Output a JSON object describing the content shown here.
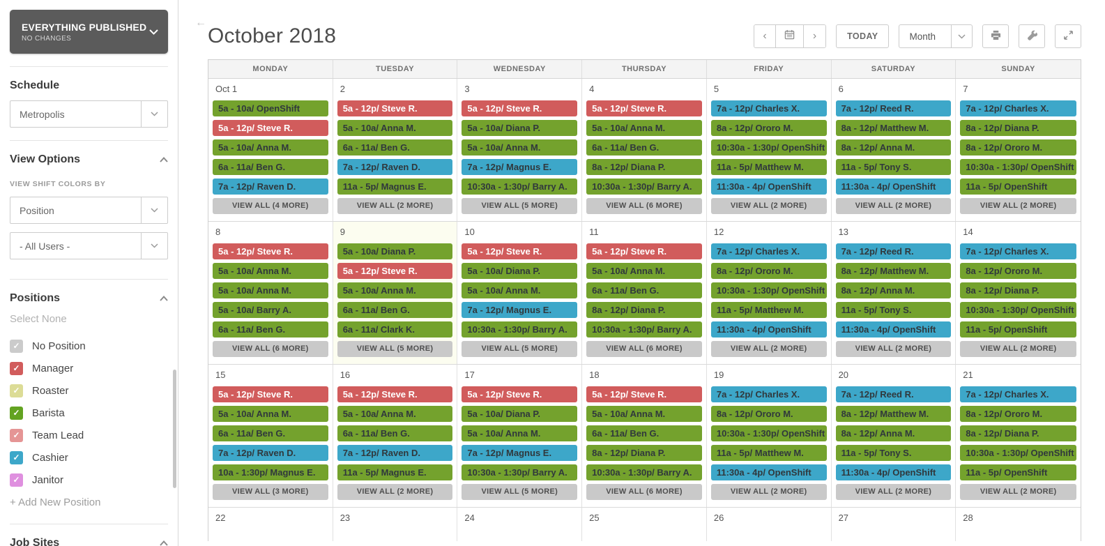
{
  "sidebar": {
    "publish_status": {
      "title": "EVERYTHING PUBLISHED",
      "subtitle": "NO CHANGES"
    },
    "schedule": {
      "heading": "Schedule",
      "selected": "Metropolis"
    },
    "view_options": {
      "heading": "View Options",
      "colors_by_label": "VIEW SHIFT COLORS BY",
      "colors_by_value": "Position",
      "users_value": "- All Users -"
    },
    "positions": {
      "heading": "Positions",
      "select_none": "Select None",
      "add_new": "+ Add New Position",
      "items": [
        {
          "label": "No Position",
          "color": "#cbcbcb",
          "checked": true
        },
        {
          "label": "Manager",
          "color": "#d15c5c",
          "checked": true
        },
        {
          "label": "Roaster",
          "color": "#dcdc96",
          "checked": true
        },
        {
          "label": "Barista",
          "color": "#63a321",
          "checked": true
        },
        {
          "label": "Team Lead",
          "color": "#e59595",
          "checked": true
        },
        {
          "label": "Cashier",
          "color": "#3da7c9",
          "checked": true
        },
        {
          "label": "Janitor",
          "color": "#df90df",
          "checked": true
        }
      ]
    },
    "job_sites": {
      "heading": "Job Sites"
    }
  },
  "toolbar": {
    "title": "October 2018",
    "today_label": "TODAY",
    "view_mode": "Month"
  },
  "calendar": {
    "weekdays": [
      "MONDAY",
      "TUESDAY",
      "WEDNESDAY",
      "THURSDAY",
      "FRIDAY",
      "SATURDAY",
      "SUNDAY"
    ],
    "shift_colors": {
      "green": "#74a22d",
      "red": "#d15c5c",
      "blue": "#3da7c9"
    },
    "weeks": [
      {
        "days": [
          {
            "date": "Oct 1",
            "shifts": [
              {
                "t": "5a - 10a/ OpenShift",
                "c": "green"
              },
              {
                "t": "5a - 12p/ Steve R.",
                "c": "red"
              },
              {
                "t": "5a - 10a/ Anna M.",
                "c": "green"
              },
              {
                "t": "6a - 11a/ Ben G.",
                "c": "green"
              },
              {
                "t": "7a - 12p/ Raven D.",
                "c": "blue"
              }
            ],
            "more": "VIEW ALL (4 MORE)"
          },
          {
            "date": "2",
            "shifts": [
              {
                "t": "5a - 12p/ Steve R.",
                "c": "red"
              },
              {
                "t": "5a - 10a/ Anna M.",
                "c": "green"
              },
              {
                "t": "6a - 11a/ Ben G.",
                "c": "green"
              },
              {
                "t": "7a - 12p/ Raven D.",
                "c": "blue"
              },
              {
                "t": "11a - 5p/ Magnus E.",
                "c": "green"
              }
            ],
            "more": "VIEW ALL (2 MORE)"
          },
          {
            "date": "3",
            "shifts": [
              {
                "t": "5a - 12p/ Steve R.",
                "c": "red"
              },
              {
                "t": "5a - 10a/ Diana P.",
                "c": "green"
              },
              {
                "t": "5a - 10a/ Anna M.",
                "c": "green"
              },
              {
                "t": "7a - 12p/ Magnus E.",
                "c": "blue"
              },
              {
                "t": "10:30a - 1:30p/ Barry A.",
                "c": "green"
              }
            ],
            "more": "VIEW ALL (5 MORE)"
          },
          {
            "date": "4",
            "shifts": [
              {
                "t": "5a - 12p/ Steve R.",
                "c": "red"
              },
              {
                "t": "5a - 10a/ Anna M.",
                "c": "green"
              },
              {
                "t": "6a - 11a/ Ben G.",
                "c": "green"
              },
              {
                "t": "8a - 12p/ Diana P.",
                "c": "green"
              },
              {
                "t": "10:30a - 1:30p/ Barry A.",
                "c": "green"
              }
            ],
            "more": "VIEW ALL (6 MORE)"
          },
          {
            "date": "5",
            "shifts": [
              {
                "t": "7a - 12p/ Charles X.",
                "c": "blue"
              },
              {
                "t": "8a - 12p/ Ororo M.",
                "c": "green"
              },
              {
                "t": "10:30a - 1:30p/ OpenShift",
                "c": "green"
              },
              {
                "t": "11a - 5p/ Matthew M.",
                "c": "green"
              },
              {
                "t": "11:30a - 4p/ OpenShift",
                "c": "blue"
              }
            ],
            "more": "VIEW ALL (2 MORE)"
          },
          {
            "date": "6",
            "shifts": [
              {
                "t": "7a - 12p/ Reed R.",
                "c": "blue"
              },
              {
                "t": "8a - 12p/ Matthew M.",
                "c": "green"
              },
              {
                "t": "8a - 12p/ Anna M.",
                "c": "green"
              },
              {
                "t": "11a - 5p/ Tony S.",
                "c": "green"
              },
              {
                "t": "11:30a - 4p/ OpenShift",
                "c": "blue"
              }
            ],
            "more": "VIEW ALL (2 MORE)"
          },
          {
            "date": "7",
            "shifts": [
              {
                "t": "7a - 12p/ Charles X.",
                "c": "blue"
              },
              {
                "t": "8a - 12p/ Diana P.",
                "c": "green"
              },
              {
                "t": "8a - 12p/ Ororo M.",
                "c": "green"
              },
              {
                "t": "10:30a - 1:30p/ OpenShift",
                "c": "green"
              },
              {
                "t": "11a - 5p/ OpenShift",
                "c": "green"
              }
            ],
            "more": "VIEW ALL (2 MORE)"
          }
        ]
      },
      {
        "days": [
          {
            "date": "8",
            "shifts": [
              {
                "t": "5a - 12p/ Steve R.",
                "c": "red"
              },
              {
                "t": "5a - 10a/ Anna M.",
                "c": "green"
              },
              {
                "t": "5a - 10a/ Anna M.",
                "c": "green"
              },
              {
                "t": "5a - 10a/ Barry A.",
                "c": "green"
              },
              {
                "t": "6a - 11a/ Ben G.",
                "c": "green"
              }
            ],
            "more": "VIEW ALL (6 MORE)"
          },
          {
            "date": "9",
            "today": true,
            "shifts": [
              {
                "t": "5a - 10a/ Diana P.",
                "c": "green"
              },
              {
                "t": "5a - 12p/ Steve R.",
                "c": "red"
              },
              {
                "t": "5a - 10a/ Anna M.",
                "c": "green"
              },
              {
                "t": "6a - 11a/ Ben G.",
                "c": "green"
              },
              {
                "t": "6a - 11a/ Clark K.",
                "c": "green"
              }
            ],
            "more": "VIEW ALL (5 MORE)"
          },
          {
            "date": "10",
            "shifts": [
              {
                "t": "5a - 12p/ Steve R.",
                "c": "red"
              },
              {
                "t": "5a - 10a/ Diana P.",
                "c": "green"
              },
              {
                "t": "5a - 10a/ Anna M.",
                "c": "green"
              },
              {
                "t": "7a - 12p/ Magnus E.",
                "c": "blue"
              },
              {
                "t": "10:30a - 1:30p/ Barry A.",
                "c": "green"
              }
            ],
            "more": "VIEW ALL (5 MORE)"
          },
          {
            "date": "11",
            "shifts": [
              {
                "t": "5a - 12p/ Steve R.",
                "c": "red"
              },
              {
                "t": "5a - 10a/ Anna M.",
                "c": "green"
              },
              {
                "t": "6a - 11a/ Ben G.",
                "c": "green"
              },
              {
                "t": "8a - 12p/ Diana P.",
                "c": "green"
              },
              {
                "t": "10:30a - 1:30p/ Barry A.",
                "c": "green"
              }
            ],
            "more": "VIEW ALL (6 MORE)"
          },
          {
            "date": "12",
            "shifts": [
              {
                "t": "7a - 12p/ Charles X.",
                "c": "blue"
              },
              {
                "t": "8a - 12p/ Ororo M.",
                "c": "green"
              },
              {
                "t": "10:30a - 1:30p/ OpenShift",
                "c": "green"
              },
              {
                "t": "11a - 5p/ Matthew M.",
                "c": "green"
              },
              {
                "t": "11:30a - 4p/ OpenShift",
                "c": "blue"
              }
            ],
            "more": "VIEW ALL (2 MORE)"
          },
          {
            "date": "13",
            "shifts": [
              {
                "t": "7a - 12p/ Reed R.",
                "c": "blue"
              },
              {
                "t": "8a - 12p/ Matthew M.",
                "c": "green"
              },
              {
                "t": "8a - 12p/ Anna M.",
                "c": "green"
              },
              {
                "t": "11a - 5p/ Tony S.",
                "c": "green"
              },
              {
                "t": "11:30a - 4p/ OpenShift",
                "c": "blue"
              }
            ],
            "more": "VIEW ALL (2 MORE)"
          },
          {
            "date": "14",
            "shifts": [
              {
                "t": "7a - 12p/ Charles X.",
                "c": "blue"
              },
              {
                "t": "8a - 12p/ Ororo M.",
                "c": "green"
              },
              {
                "t": "8a - 12p/ Diana P.",
                "c": "green"
              },
              {
                "t": "10:30a - 1:30p/ OpenShift",
                "c": "green"
              },
              {
                "t": "11a - 5p/ OpenShift",
                "c": "green"
              }
            ],
            "more": "VIEW ALL (2 MORE)"
          }
        ]
      },
      {
        "days": [
          {
            "date": "15",
            "shifts": [
              {
                "t": "5a - 12p/ Steve R.",
                "c": "red"
              },
              {
                "t": "5a - 10a/ Anna M.",
                "c": "green"
              },
              {
                "t": "6a - 11a/ Ben G.",
                "c": "green"
              },
              {
                "t": "7a - 12p/ Raven D.",
                "c": "blue"
              },
              {
                "t": "10a - 1:30p/ Magnus E.",
                "c": "green"
              }
            ],
            "more": "VIEW ALL (3 MORE)"
          },
          {
            "date": "16",
            "shifts": [
              {
                "t": "5a - 12p/ Steve R.",
                "c": "red"
              },
              {
                "t": "5a - 10a/ Anna M.",
                "c": "green"
              },
              {
                "t": "6a - 11a/ Ben G.",
                "c": "green"
              },
              {
                "t": "7a - 12p/ Raven D.",
                "c": "blue"
              },
              {
                "t": "11a - 5p/ Magnus E.",
                "c": "green"
              }
            ],
            "more": "VIEW ALL (2 MORE)"
          },
          {
            "date": "17",
            "shifts": [
              {
                "t": "5a - 12p/ Steve R.",
                "c": "red"
              },
              {
                "t": "5a - 10a/ Diana P.",
                "c": "green"
              },
              {
                "t": "5a - 10a/ Anna M.",
                "c": "green"
              },
              {
                "t": "7a - 12p/ Magnus E.",
                "c": "blue"
              },
              {
                "t": "10:30a - 1:30p/ Barry A.",
                "c": "green"
              }
            ],
            "more": "VIEW ALL (5 MORE)"
          },
          {
            "date": "18",
            "shifts": [
              {
                "t": "5a - 12p/ Steve R.",
                "c": "red"
              },
              {
                "t": "5a - 10a/ Anna M.",
                "c": "green"
              },
              {
                "t": "6a - 11a/ Ben G.",
                "c": "green"
              },
              {
                "t": "8a - 12p/ Diana P.",
                "c": "green"
              },
              {
                "t": "10:30a - 1:30p/ Barry A.",
                "c": "green"
              }
            ],
            "more": "VIEW ALL (6 MORE)"
          },
          {
            "date": "19",
            "shifts": [
              {
                "t": "7a - 12p/ Charles X.",
                "c": "blue"
              },
              {
                "t": "8a - 12p/ Ororo M.",
                "c": "green"
              },
              {
                "t": "10:30a - 1:30p/ OpenShift",
                "c": "green"
              },
              {
                "t": "11a - 5p/ Matthew M.",
                "c": "green"
              },
              {
                "t": "11:30a - 4p/ OpenShift",
                "c": "blue"
              }
            ],
            "more": "VIEW ALL (2 MORE)"
          },
          {
            "date": "20",
            "shifts": [
              {
                "t": "7a - 12p/ Reed R.",
                "c": "blue"
              },
              {
                "t": "8a - 12p/ Matthew M.",
                "c": "green"
              },
              {
                "t": "8a - 12p/ Anna M.",
                "c": "green"
              },
              {
                "t": "11a - 5p/ Tony S.",
                "c": "green"
              },
              {
                "t": "11:30a - 4p/ OpenShift",
                "c": "blue"
              }
            ],
            "more": "VIEW ALL (2 MORE)"
          },
          {
            "date": "21",
            "shifts": [
              {
                "t": "7a - 12p/ Charles X.",
                "c": "blue"
              },
              {
                "t": "8a - 12p/ Ororo M.",
                "c": "green"
              },
              {
                "t": "8a - 12p/ Diana P.",
                "c": "green"
              },
              {
                "t": "10:30a - 1:30p/ OpenShift",
                "c": "green"
              },
              {
                "t": "11a - 5p/ OpenShift",
                "c": "green"
              }
            ],
            "more": "VIEW ALL (2 MORE)"
          }
        ]
      },
      {
        "partial": true,
        "days": [
          {
            "date": "22"
          },
          {
            "date": "23"
          },
          {
            "date": "24"
          },
          {
            "date": "25"
          },
          {
            "date": "26"
          },
          {
            "date": "27"
          },
          {
            "date": "28"
          }
        ]
      }
    ]
  }
}
